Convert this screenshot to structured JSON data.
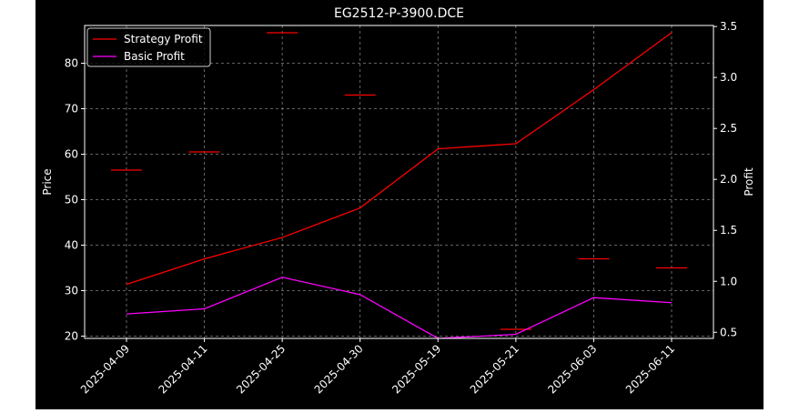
{
  "chart_data": {
    "type": "line",
    "title": "EG2512-P-3900.DCE",
    "xlabel": "",
    "ylabel_left": "Price",
    "ylabel_right": "Profit",
    "categories": [
      "2025-04-09",
      "2025-04-11",
      "2025-04-25",
      "2025-04-30",
      "2025-05-19",
      "2025-05-21",
      "2025-06-03",
      "2025-06-11"
    ],
    "price_series": {
      "marker": "horizontal-dash",
      "color": "#ff0000",
      "values": [
        56.5,
        60.5,
        86.7,
        73.0,
        null,
        21.5,
        37.0,
        35.0
      ]
    },
    "series": [
      {
        "name": "Strategy Profit",
        "color": "#ff0000",
        "axis": "right",
        "values": [
          0.97,
          1.22,
          1.43,
          1.72,
          2.3,
          2.35,
          2.88,
          3.44
        ]
      },
      {
        "name": "Basic Profit",
        "color": "#ff00ff",
        "axis": "right",
        "values": [
          0.68,
          0.73,
          1.04,
          0.87,
          0.44,
          0.48,
          0.84,
          0.79
        ]
      }
    ],
    "ylim_left": [
      19.5,
      88.3
    ],
    "ylim_right": [
      0.44,
      3.51
    ],
    "yticks_left": [
      "20",
      "30",
      "40",
      "50",
      "60",
      "70",
      "80"
    ],
    "yticks_right": [
      "0.5",
      "1.0",
      "1.5",
      "2.0",
      "2.5",
      "3.0",
      "3.5"
    ],
    "grid": true,
    "legend_position": "top-left",
    "background": "#000000",
    "foreground": "#ffffff",
    "grid_color": "#808080"
  }
}
